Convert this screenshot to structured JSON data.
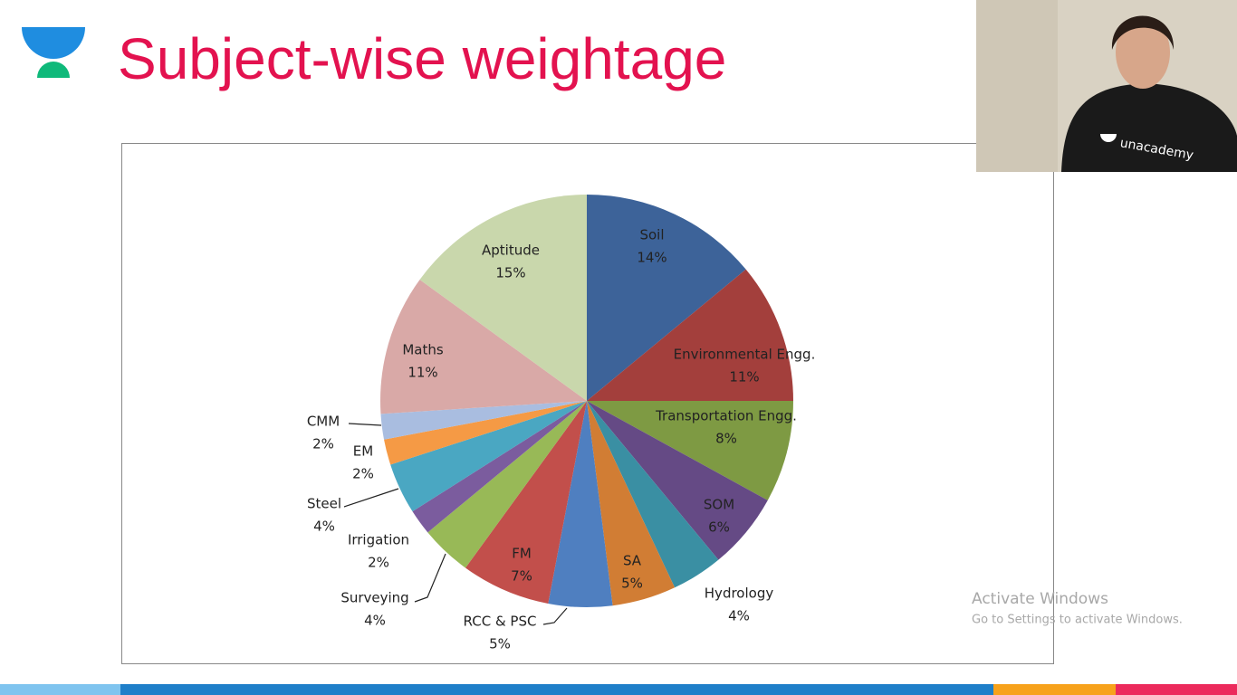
{
  "header": {
    "title": "Subject-wise weightage"
  },
  "chart_data": {
    "type": "pie",
    "categories": [
      "Soil",
      "Environmental Engg.",
      "Transportation Engg.",
      "SOM",
      "Hydrology",
      "SA",
      "RCC & PSC",
      "FM",
      "Surveying",
      "Irrigation",
      "Steel",
      "EM",
      "CMM",
      "Maths",
      "Aptitude"
    ],
    "values": [
      14,
      11,
      8,
      6,
      4,
      5,
      5,
      7,
      4,
      2,
      4,
      2,
      2,
      11,
      15
    ],
    "value_labels": [
      "14%",
      "11%",
      "8%",
      "6%",
      "4%",
      "5%",
      "5%",
      "7%",
      "4%",
      "2%",
      "4%",
      "2%",
      "2%",
      "11%",
      "15%"
    ],
    "colors": [
      "#3d6399",
      "#a33f3c",
      "#7e9a43",
      "#654a85",
      "#3a8fa3",
      "#d17d34",
      "#4f7fc0",
      "#c24f4b",
      "#98b957",
      "#7b5c9e",
      "#4aa7c2",
      "#f59a45",
      "#a9bde0",
      "#d9a9a7",
      "#c9d7ac"
    ]
  },
  "webcam": {
    "shirt_text": "unacademy"
  },
  "watermark": {
    "line1": "Activate Windows",
    "line2": "Go to Settings to activate Windows."
  }
}
